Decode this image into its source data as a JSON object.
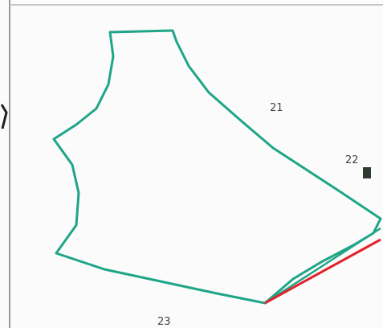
{
  "labels": [
    "21",
    "22",
    "23"
  ]
}
